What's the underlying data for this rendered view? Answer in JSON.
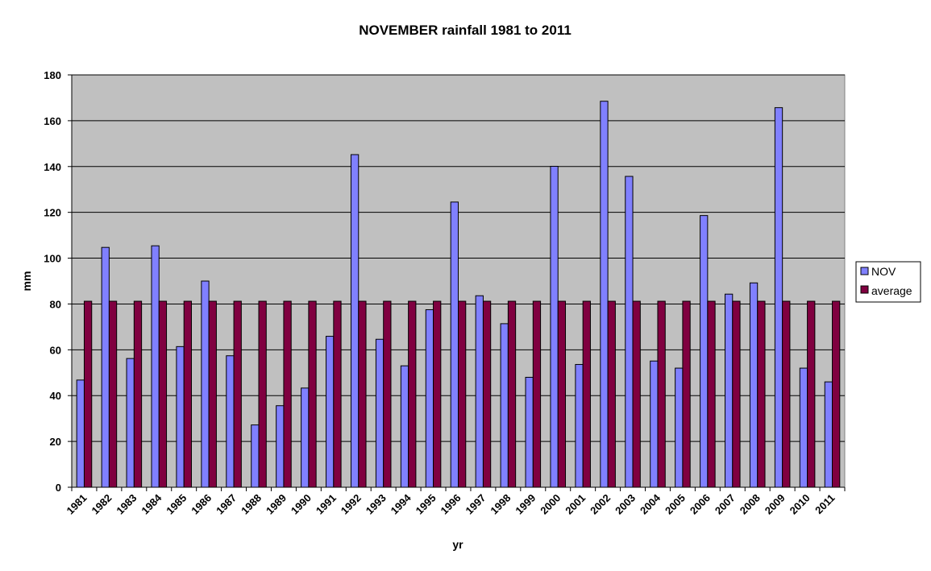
{
  "chart_data": {
    "type": "bar",
    "title": "NOVEMBER rainfall 1981 to 2011",
    "xlabel": "yr",
    "ylabel": "mm",
    "ylim": [
      0,
      180
    ],
    "yticks": [
      0,
      20,
      40,
      60,
      80,
      100,
      120,
      140,
      160,
      180
    ],
    "grid": true,
    "legend_position": "right",
    "plot_background": "#c0c0c0",
    "categories": [
      "1981",
      "1982",
      "1983",
      "1984",
      "1985",
      "1986",
      "1987",
      "1988",
      "1989",
      "1990",
      "1991",
      "1992",
      "1993",
      "1994",
      "1995",
      "1996",
      "1997",
      "1998",
      "1999",
      "2000",
      "2001",
      "2002",
      "2003",
      "2004",
      "2005",
      "2006",
      "2007",
      "2008",
      "2009",
      "2010",
      "2011"
    ],
    "series": [
      {
        "name": "NOV",
        "color": "#8080ff",
        "values": [
          46.8,
          104.7,
          56.2,
          105.4,
          61.4,
          90.0,
          57.4,
          27.2,
          35.6,
          43.3,
          65.9,
          145.2,
          64.6,
          53.0,
          77.5,
          124.5,
          83.6,
          71.4,
          48.0,
          140.1,
          53.6,
          168.5,
          135.7,
          55.1,
          52.0,
          118.6,
          84.3,
          89.2,
          165.7,
          52.0,
          46.0
        ]
      },
      {
        "name": "average",
        "color": "#800040",
        "values": [
          81.2,
          81.2,
          81.2,
          81.2,
          81.2,
          81.2,
          81.2,
          81.2,
          81.2,
          81.2,
          81.2,
          81.2,
          81.2,
          81.2,
          81.2,
          81.2,
          81.2,
          81.2,
          81.2,
          81.2,
          81.2,
          81.2,
          81.2,
          81.2,
          81.2,
          81.2,
          81.2,
          81.2,
          81.2,
          81.2,
          81.2
        ]
      }
    ]
  }
}
